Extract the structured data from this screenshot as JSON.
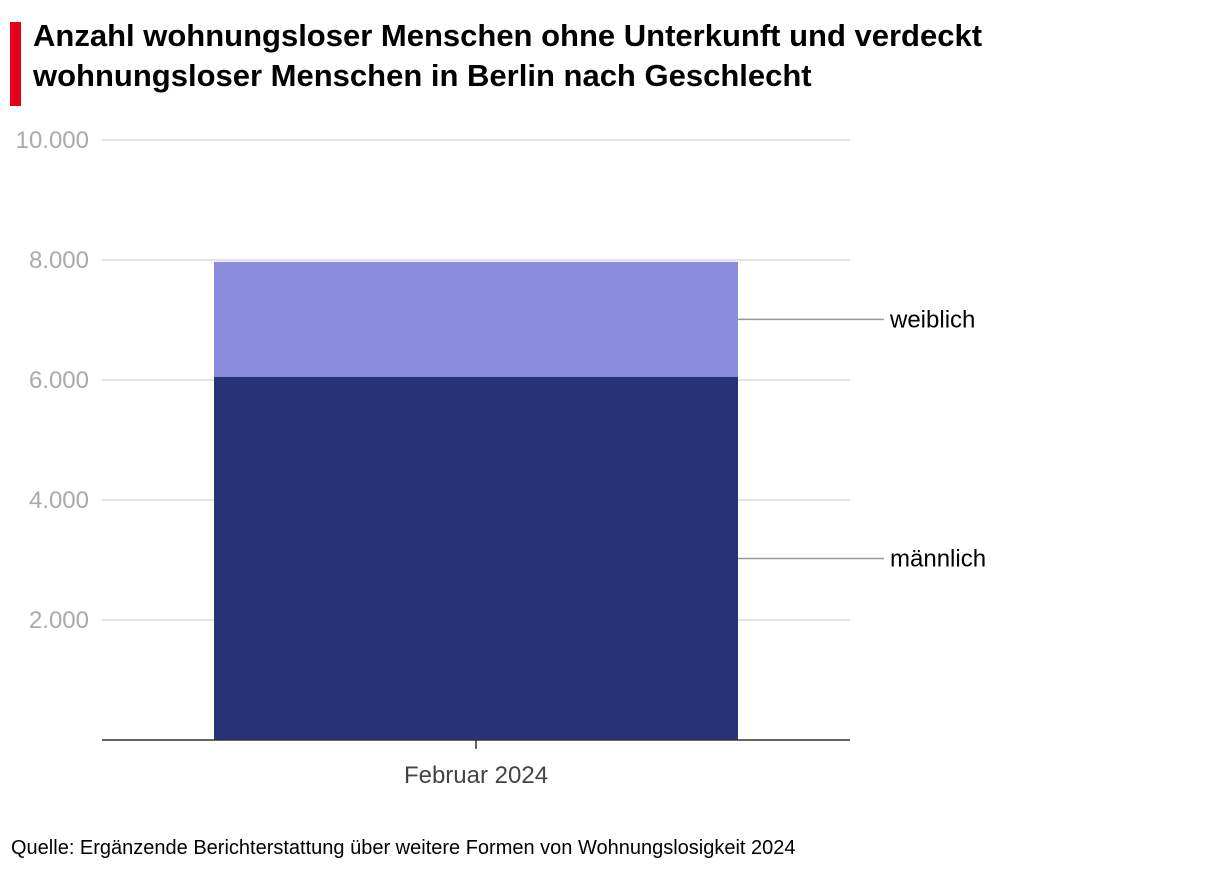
{
  "title": "Anzahl wohnungsloser Menschen ohne Unterkunft und verdeckt wohnungsloser Menschen in Berlin nach Geschlecht",
  "source": "Quelle: Ergänzende Berichterstattung über weitere Formen von Wohnungslosigkeit 2024",
  "colors": {
    "accent": "#e3001b",
    "maennlich": "#263477",
    "weiblich": "#8a8cdc",
    "grid": "#dcdcdc",
    "tick_label": "#aaaaaa",
    "leader": "#999999"
  },
  "chart_data": {
    "type": "bar",
    "stacked": true,
    "categories": [
      "Februar 2024"
    ],
    "series": [
      {
        "name": "männlich",
        "values": [
          6050
        ]
      },
      {
        "name": "weiblich",
        "values": [
          1920
        ]
      }
    ],
    "ylim": [
      0,
      10000
    ],
    "yticks": [
      2000,
      4000,
      6000,
      8000,
      10000
    ],
    "ytick_labels": [
      "2.000",
      "4.000",
      "6.000",
      "8.000",
      "10.000"
    ],
    "xlabel": "",
    "ylabel": "",
    "grid": true,
    "legend": "direct labels right of bar"
  }
}
